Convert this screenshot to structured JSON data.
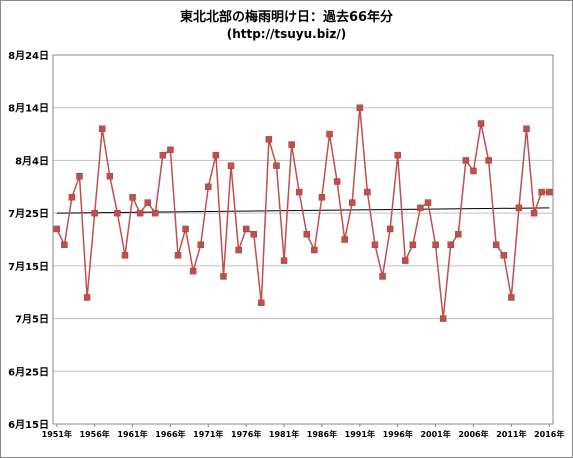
{
  "chart_data": {
    "type": "line",
    "title": "東北北部の梅雨明け日：過去66年分",
    "subtitle": "(http://tsuyu.biz/)",
    "xlabel": "",
    "ylabel": "",
    "x": [
      1951,
      1952,
      1953,
      1954,
      1955,
      1956,
      1957,
      1958,
      1959,
      1960,
      1961,
      1962,
      1963,
      1964,
      1965,
      1966,
      1967,
      1968,
      1969,
      1970,
      1971,
      1972,
      1973,
      1974,
      1975,
      1976,
      1977,
      1978,
      1979,
      1980,
      1981,
      1982,
      1983,
      1984,
      1985,
      1986,
      1987,
      1988,
      1989,
      1990,
      1991,
      1992,
      1993,
      1994,
      1995,
      1996,
      1997,
      1998,
      1999,
      2000,
      2001,
      2002,
      2003,
      2004,
      2005,
      2006,
      2007,
      2008,
      2009,
      2010,
      2011,
      2012,
      2013,
      2014,
      2015,
      2016
    ],
    "values": [
      "7月22日",
      "7月19日",
      "7月28日",
      "8月1日",
      "7月9日",
      "7月25日",
      "8月10日",
      "8月1日",
      "7月25日",
      "7月17日",
      "7月28日",
      "7月25日",
      "7月27日",
      "7月25日",
      "8月5日",
      "8月6日",
      "7月17日",
      "7月22日",
      "7月14日",
      "7月19日",
      "7月30日",
      "8月5日",
      "7月13日",
      "8月3日",
      "7月18日",
      "7月22日",
      "7月21日",
      "7月8日",
      "8月8日",
      "8月3日",
      "7月16日",
      "8月7日",
      "7月29日",
      "7月21日",
      "7月18日",
      "7月28日",
      "8月9日",
      "7月31日",
      "7月20日",
      "7月27日",
      "8月14日",
      "7月29日",
      "7月19日",
      "7月13日",
      "7月22日",
      "8月5日",
      "7月16日",
      "7月19日",
      "7月26日",
      "7月27日",
      "7月19日",
      "7月5日",
      "7月19日",
      "7月21日",
      "8月4日",
      "8月2日",
      "8月11日",
      "8月4日",
      "7月19日",
      "7月17日",
      "7月9日",
      "7月26日",
      "8月10日",
      "7月25日",
      "7月29日",
      "7月29日"
    ],
    "trend_line": {
      "start": "7月25日",
      "end": "7月26日"
    },
    "y_ticks": [
      "6月15日",
      "6月25日",
      "7月5日",
      "7月15日",
      "7月25日",
      "8月4日",
      "8月14日",
      "8月24日"
    ],
    "x_ticks": [
      "1951年",
      "1956年",
      "1961年",
      "1966年",
      "1971年",
      "1976年",
      "1981年",
      "1986年",
      "1991年",
      "1996年",
      "2001年",
      "2006年",
      "2011年",
      "2016年"
    ],
    "ylim": [
      "6月15日",
      "8月24日"
    ],
    "grid": true,
    "colors": {
      "series": "#c0504d",
      "trend": "#000000",
      "grid": "#c0c0c0",
      "axis": "#888888"
    }
  }
}
